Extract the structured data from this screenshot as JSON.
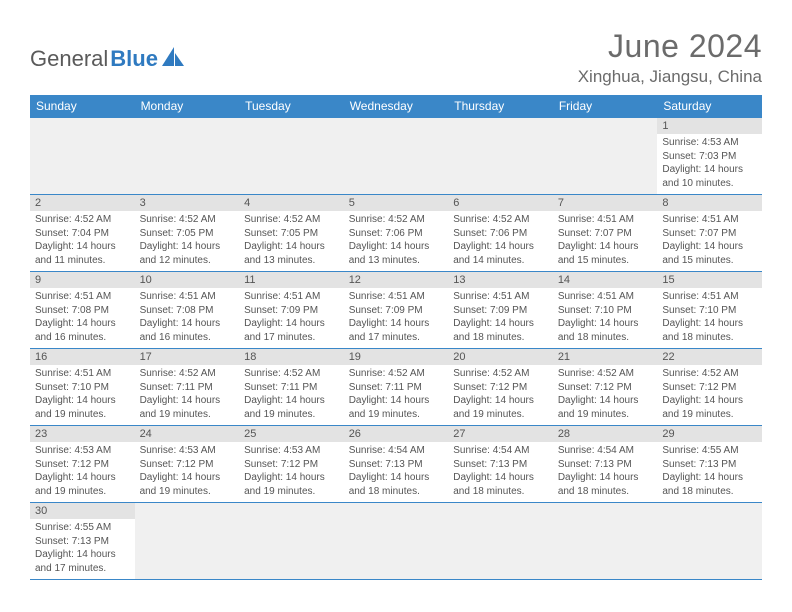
{
  "brand": {
    "part1": "General",
    "part2": "Blue"
  },
  "title": "June 2024",
  "location": "Xinghua, Jiangsu, China",
  "colors": {
    "header_bg": "#3a87c8",
    "header_text": "#ffffff",
    "daynum_bg": "#e3e3e3",
    "row_border": "#3a87c8",
    "title_color": "#6b6b6b",
    "logo_gray": "#5a5a5a",
    "logo_blue": "#2f7ac0",
    "empty_bg": "#f0f0f0"
  },
  "weekdays": [
    "Sunday",
    "Monday",
    "Tuesday",
    "Wednesday",
    "Thursday",
    "Friday",
    "Saturday"
  ],
  "table": {
    "first_weekday_index": 6,
    "num_days": 30
  },
  "days": {
    "1": {
      "sunrise": "4:53 AM",
      "sunset": "7:03 PM",
      "daylight": "14 hours and 10 minutes."
    },
    "2": {
      "sunrise": "4:52 AM",
      "sunset": "7:04 PM",
      "daylight": "14 hours and 11 minutes."
    },
    "3": {
      "sunrise": "4:52 AM",
      "sunset": "7:05 PM",
      "daylight": "14 hours and 12 minutes."
    },
    "4": {
      "sunrise": "4:52 AM",
      "sunset": "7:05 PM",
      "daylight": "14 hours and 13 minutes."
    },
    "5": {
      "sunrise": "4:52 AM",
      "sunset": "7:06 PM",
      "daylight": "14 hours and 13 minutes."
    },
    "6": {
      "sunrise": "4:52 AM",
      "sunset": "7:06 PM",
      "daylight": "14 hours and 14 minutes."
    },
    "7": {
      "sunrise": "4:51 AM",
      "sunset": "7:07 PM",
      "daylight": "14 hours and 15 minutes."
    },
    "8": {
      "sunrise": "4:51 AM",
      "sunset": "7:07 PM",
      "daylight": "14 hours and 15 minutes."
    },
    "9": {
      "sunrise": "4:51 AM",
      "sunset": "7:08 PM",
      "daylight": "14 hours and 16 minutes."
    },
    "10": {
      "sunrise": "4:51 AM",
      "sunset": "7:08 PM",
      "daylight": "14 hours and 16 minutes."
    },
    "11": {
      "sunrise": "4:51 AM",
      "sunset": "7:09 PM",
      "daylight": "14 hours and 17 minutes."
    },
    "12": {
      "sunrise": "4:51 AM",
      "sunset": "7:09 PM",
      "daylight": "14 hours and 17 minutes."
    },
    "13": {
      "sunrise": "4:51 AM",
      "sunset": "7:09 PM",
      "daylight": "14 hours and 18 minutes."
    },
    "14": {
      "sunrise": "4:51 AM",
      "sunset": "7:10 PM",
      "daylight": "14 hours and 18 minutes."
    },
    "15": {
      "sunrise": "4:51 AM",
      "sunset": "7:10 PM",
      "daylight": "14 hours and 18 minutes."
    },
    "16": {
      "sunrise": "4:51 AM",
      "sunset": "7:10 PM",
      "daylight": "14 hours and 19 minutes."
    },
    "17": {
      "sunrise": "4:52 AM",
      "sunset": "7:11 PM",
      "daylight": "14 hours and 19 minutes."
    },
    "18": {
      "sunrise": "4:52 AM",
      "sunset": "7:11 PM",
      "daylight": "14 hours and 19 minutes."
    },
    "19": {
      "sunrise": "4:52 AM",
      "sunset": "7:11 PM",
      "daylight": "14 hours and 19 minutes."
    },
    "20": {
      "sunrise": "4:52 AM",
      "sunset": "7:12 PM",
      "daylight": "14 hours and 19 minutes."
    },
    "21": {
      "sunrise": "4:52 AM",
      "sunset": "7:12 PM",
      "daylight": "14 hours and 19 minutes."
    },
    "22": {
      "sunrise": "4:52 AM",
      "sunset": "7:12 PM",
      "daylight": "14 hours and 19 minutes."
    },
    "23": {
      "sunrise": "4:53 AM",
      "sunset": "7:12 PM",
      "daylight": "14 hours and 19 minutes."
    },
    "24": {
      "sunrise": "4:53 AM",
      "sunset": "7:12 PM",
      "daylight": "14 hours and 19 minutes."
    },
    "25": {
      "sunrise": "4:53 AM",
      "sunset": "7:12 PM",
      "daylight": "14 hours and 19 minutes."
    },
    "26": {
      "sunrise": "4:54 AM",
      "sunset": "7:13 PM",
      "daylight": "14 hours and 18 minutes."
    },
    "27": {
      "sunrise": "4:54 AM",
      "sunset": "7:13 PM",
      "daylight": "14 hours and 18 minutes."
    },
    "28": {
      "sunrise": "4:54 AM",
      "sunset": "7:13 PM",
      "daylight": "14 hours and 18 minutes."
    },
    "29": {
      "sunrise": "4:55 AM",
      "sunset": "7:13 PM",
      "daylight": "14 hours and 18 minutes."
    },
    "30": {
      "sunrise": "4:55 AM",
      "sunset": "7:13 PM",
      "daylight": "14 hours and 17 minutes."
    }
  },
  "labels": {
    "sunrise_prefix": "Sunrise: ",
    "sunset_prefix": "Sunset: ",
    "daylight_prefix": "Daylight: "
  }
}
